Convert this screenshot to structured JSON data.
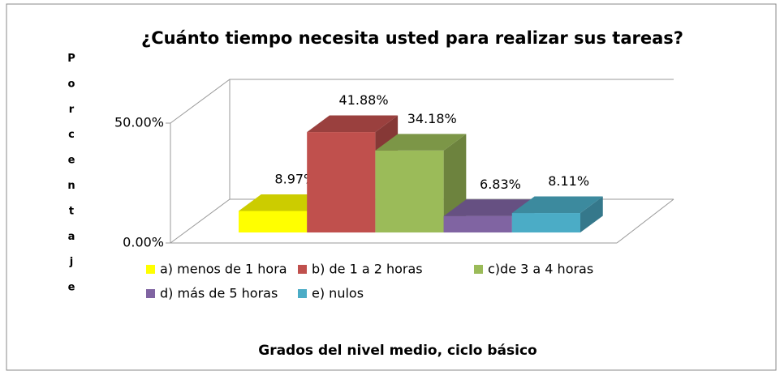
{
  "chart_data": {
    "type": "bar3d",
    "title": "¿Cuánto tiempo necesita usted para realizar sus tareas?",
    "ylabel": "Porcentaje",
    "xlabel": "Grados del nivel medio, ciclo básico",
    "ylim": [
      0,
      50
    ],
    "yticks": [
      {
        "value": 0,
        "label": "0.00%"
      },
      {
        "value": 50,
        "label": "50.00%"
      }
    ],
    "grid": true,
    "legend": "bottom",
    "series": [
      {
        "name": "a) menos de 1 hora",
        "color": "#ffff00",
        "values": [
          8.97
        ],
        "value_labels": [
          "8.97%"
        ]
      },
      {
        "name": "b) de 1 a 2 horas",
        "color": "#c0504d",
        "values": [
          41.88
        ],
        "value_labels": [
          "41.88%"
        ]
      },
      {
        "name": "c)de 3 a 4 horas",
        "color": "#9bbb59",
        "values": [
          34.18
        ],
        "value_labels": [
          "34.18%"
        ]
      },
      {
        "name": "d) más de 5 horas",
        "color": "#8064a2",
        "values": [
          6.83
        ],
        "value_labels": [
          "6.83%"
        ]
      },
      {
        "name": "e) nulos",
        "color": "#4bacc6",
        "values": [
          8.11
        ],
        "value_labels": [
          "8.11%"
        ]
      }
    ]
  }
}
